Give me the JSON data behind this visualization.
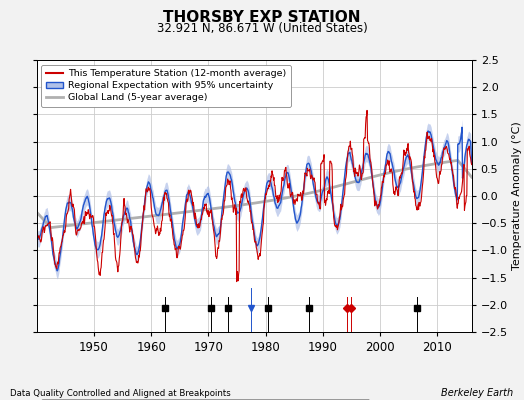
{
  "title": "THORSBY EXP STATION",
  "subtitle": "32.921 N, 86.671 W (United States)",
  "ylabel": "Temperature Anomaly (°C)",
  "footer_left": "Data Quality Controlled and Aligned at Breakpoints",
  "footer_right": "Berkeley Earth",
  "xlim": [
    1940,
    2016
  ],
  "ylim": [
    -2.5,
    2.5
  ],
  "yticks": [
    -2.5,
    -2,
    -1.5,
    -1,
    -0.5,
    0,
    0.5,
    1,
    1.5,
    2,
    2.5
  ],
  "xticks": [
    1950,
    1960,
    1970,
    1980,
    1990,
    2000,
    2010
  ],
  "bg_color": "#f2f2f2",
  "plot_bg": "#ffffff",
  "station_move_years": [
    1994.3,
    1995.0
  ],
  "record_gap_years": [],
  "time_obs_years": [
    1977.5
  ],
  "empirical_break_years": [
    1962.5,
    1970.5,
    1973.5,
    1980.5,
    1987.5,
    2006.5
  ],
  "legend_station": "This Temperature Station (12-month average)",
  "legend_regional": "Regional Expectation with 95% uncertainty",
  "legend_global": "Global Land (5-year average)"
}
